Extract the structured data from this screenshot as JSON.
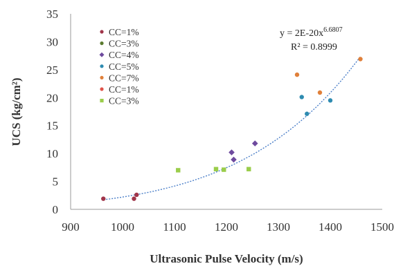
{
  "chart_data": {
    "type": "scatter",
    "xlabel": "Ultrasonic Pulse Velocity (m/s)",
    "ylabel": "UCS (kg/cm²)",
    "xlim": [
      900,
      1500
    ],
    "ylim": [
      0,
      35
    ],
    "xticks": [
      900,
      1000,
      1100,
      1200,
      1300,
      1400,
      1500
    ],
    "yticks": [
      0,
      5,
      10,
      15,
      20,
      25,
      30,
      35
    ],
    "grid": false,
    "legend_position": "top-left",
    "series": [
      {
        "name": "CC=1%",
        "marker": "circle",
        "color": "#A0354A",
        "points": [
          [
            963,
            1.9
          ],
          [
            1022,
            1.9
          ],
          [
            1027,
            2.6
          ]
        ]
      },
      {
        "name": "CC=3%",
        "marker": "circle",
        "color": "#5A7A2E",
        "points": []
      },
      {
        "name": "CC=4%",
        "marker": "diamond",
        "color": "#6E4A9E",
        "points": [
          [
            1210,
            10.2
          ],
          [
            1214,
            8.9
          ],
          [
            1255,
            11.8
          ]
        ]
      },
      {
        "name": "CC=5%",
        "marker": "circle",
        "color": "#2E8BB0",
        "points": [
          [
            1345,
            20.1
          ],
          [
            1355,
            17.1
          ],
          [
            1400,
            19.5
          ]
        ]
      },
      {
        "name": "CC=7%",
        "marker": "circle",
        "color": "#E0803A",
        "points": [
          [
            1336,
            24.1
          ],
          [
            1380,
            20.9
          ],
          [
            1458,
            26.9
          ]
        ]
      },
      {
        "name": "CC=1%",
        "marker": "circle",
        "color": "#E0534A",
        "points": []
      },
      {
        "name": "CC=3%",
        "marker": "square",
        "color": "#9ACD4A",
        "points": [
          [
            1107,
            7.0
          ],
          [
            1180,
            7.2
          ],
          [
            1195,
            7.1
          ],
          [
            1243,
            7.2
          ]
        ]
      }
    ],
    "trendline": {
      "type": "power",
      "coefficient": 2e-20,
      "exponent": 6.6807,
      "x_range": [
        963,
        1458
      ],
      "color": "#4A7EC8",
      "equation_label": "y = 2E-20x",
      "equation_exponent": "6.6807",
      "r2_label": "R² = 0.8999"
    }
  }
}
